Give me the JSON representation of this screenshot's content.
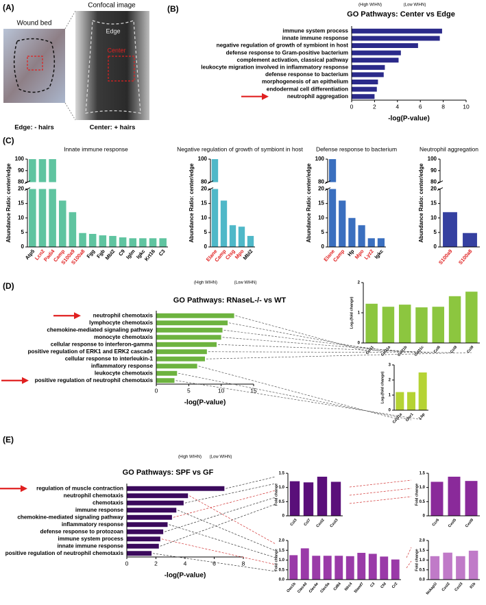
{
  "figure": {
    "panel_labels": [
      "(A)",
      "(B)",
      "(C)",
      "(D)",
      "(E)"
    ],
    "panel_a": {
      "wound_bed": "Wound bed",
      "confocal": "Confocal image",
      "edge": "Edge",
      "center": "Center",
      "edge_caption": "Edge: - hairs",
      "center_caption": "Center: + hairs"
    }
  },
  "chart_data": [
    {
      "type": "bar",
      "orientation": "horizontal",
      "title": "GO Pathways: Center vs Edge",
      "annotations": [
        "(High WIHN)",
        "(Low WIHN)"
      ],
      "color": "#2b2a8a",
      "categories": [
        "immune system process",
        "innate immune response",
        "negative regulation of growth of symbiont in host",
        "defense response to Gram-positive bacterium",
        "complement activation, classical pathway",
        "leukocyte migration involved in inflammatory response",
        "defense response to bacterium",
        "morphogenesis of an epithelium",
        "endodermal cell differentiation",
        "neutrophil aggregation"
      ],
      "values": [
        7.9,
        7.7,
        5.8,
        4.3,
        4.1,
        2.9,
        2.8,
        2.3,
        2.2,
        2.0
      ],
      "xlabel": "-log(P-value)",
      "xlim": [
        0,
        10
      ],
      "xticks": [
        0,
        2,
        4,
        6,
        8,
        10
      ]
    },
    {
      "type": "bar",
      "title": "Innate immune response",
      "ylabel": "Abundance Ratio: center/edge",
      "color": "#5fc4a0",
      "categories": [
        "Atp5",
        "Lcn2",
        "Padi4",
        "Camp",
        "S100a9",
        "S100a8",
        "Fgg",
        "Fgb",
        "Mbl2",
        "C9",
        "Iglm",
        "Igkc",
        "Krt16",
        "C3"
      ],
      "category_colors": [
        "#000000",
        "#e02020",
        "#e02020",
        "#e02020",
        "#e02020",
        "#e02020",
        "#000000",
        "#000000",
        "#000000",
        "#000000",
        "#000000",
        "#000000",
        "#000000",
        "#000000"
      ],
      "values": [
        100,
        100,
        100,
        16,
        12,
        4.8,
        4.5,
        4,
        3.8,
        3.3,
        3,
        3,
        3,
        3
      ],
      "ylim": [
        0,
        100
      ],
      "ybreak": [
        20,
        80
      ],
      "yticks": [
        0,
        5,
        10,
        15,
        20,
        80,
        90,
        100
      ]
    },
    {
      "type": "bar",
      "title": "Negative regulation of growth of symbiont in host",
      "ylabel": "Abundance Ratio: center/edge",
      "color": "#4fb8c8",
      "categories": [
        "Elane",
        "Camp",
        "Ctsg",
        "Mpo",
        "Mbl2"
      ],
      "category_colors": [
        "#e02020",
        "#e02020",
        "#e02020",
        "#e02020",
        "#000000"
      ],
      "values": [
        100,
        16,
        7.5,
        7,
        3.8
      ],
      "ylim": [
        0,
        100
      ],
      "ybreak": [
        20,
        80
      ],
      "yticks": [
        0,
        5,
        10,
        15,
        20,
        80,
        100
      ]
    },
    {
      "type": "bar",
      "title": "Defense response to bacterium",
      "ylabel": "Abundance Ratio: center/edge",
      "color": "#3a6fbf",
      "categories": [
        "Elane",
        "Camp",
        "Hp",
        "Mpo",
        "Lyz2",
        "Igkc"
      ],
      "category_colors": [
        "#e02020",
        "#e02020",
        "#000000",
        "#e02020",
        "#e02020",
        "#000000"
      ],
      "values": [
        100,
        16,
        10,
        7.5,
        3,
        3
      ],
      "ylim": [
        0,
        100
      ],
      "ybreak": [
        20,
        80
      ],
      "yticks": [
        0,
        5,
        10,
        15,
        20,
        80,
        100
      ]
    },
    {
      "type": "bar",
      "title": "Neutrophil aggregation",
      "ylabel": "Abundance Ratio: center/edge",
      "color": "#3540a0",
      "categories": [
        "S100a9",
        "S100a8"
      ],
      "category_colors": [
        "#e02020",
        "#e02020"
      ],
      "values": [
        12,
        4.8
      ],
      "ylim": [
        0,
        100
      ],
      "ybreak": [
        20,
        80
      ],
      "yticks": [
        0,
        5,
        10,
        15,
        20,
        80,
        90,
        100
      ]
    },
    {
      "type": "bar",
      "orientation": "horizontal",
      "title": "GO Pathways: RNaseL-/- vs WT",
      "annotations": [
        "(High WIHN)",
        "(Low WIHN)"
      ],
      "color": "#6db33f",
      "categories": [
        "neutrophil chemotaxis",
        "lymphocyte chemotaxis",
        "chemokine-mediated signaling pathway",
        "monocyte chemotaxis",
        "cellular response to interferon-gamma",
        "positive regulation of ERK1 and ERK2 cascade",
        "cellular response to interleukin-1",
        "inflammatory response",
        "leukocyte chemotaxis",
        "positive regulation of neutrophil chemotaxis"
      ],
      "values": [
        12,
        11,
        10.2,
        10,
        9.3,
        7.8,
        7.5,
        6.3,
        3.2,
        2.8
      ],
      "xlabel": "-log(P-value)",
      "xlim": [
        0,
        15
      ],
      "xticks": [
        0,
        5,
        10,
        15
      ]
    },
    {
      "type": "bar",
      "ylabel": "Log₂(fold change)",
      "color": "#8cc63f",
      "categories": [
        "Ccl11",
        "Ccl21a",
        "Ccl21b",
        "Ccl21c",
        "Ccl6",
        "Ccl8",
        "Ccl9"
      ],
      "values": [
        1.3,
        1.2,
        1.27,
        1.18,
        1.2,
        1.55,
        1.7
      ],
      "ylim": [
        0,
        2
      ],
      "yticks": [
        0,
        1,
        2
      ]
    },
    {
      "type": "bar",
      "ylabel": "Log₂(fold change)",
      "color": "#b5d334",
      "categories": [
        "Ccl21a",
        "Cfsr1",
        "Lbp"
      ],
      "values": [
        1.2,
        1.2,
        2.5
      ],
      "ylim": [
        0,
        3
      ],
      "yticks": [
        0,
        1,
        2,
        3
      ]
    },
    {
      "type": "bar",
      "orientation": "horizontal",
      "title": "GO Pathways: SPF vs GF",
      "annotations": [
        "(High WIHN)",
        "(Low WIHN)"
      ],
      "color": "#3b0a5c",
      "categories": [
        "regulation of muscle contraction",
        "neutrophil chemotaxis",
        "chemotaxis",
        "immune response",
        "chemokine-mediated signaling pathway",
        "inflammatory response",
        "defense response to protozoan",
        "immune system process",
        "innate immune response",
        "positive regulation of neutrophil chemotaxis"
      ],
      "values": [
        6.7,
        4.2,
        3.9,
        3.4,
        3.1,
        2.8,
        2.5,
        2.3,
        2.2,
        1.7
      ],
      "xlabel": "-log(P-value)",
      "xlim": [
        0,
        8
      ],
      "xticks": [
        0,
        2,
        4,
        6,
        8
      ]
    },
    {
      "type": "bar",
      "ylabel": "Fold change",
      "color": "#5a0f7a",
      "categories": [
        "Ccl3",
        "Ccl7",
        "Cxcl2",
        "Cxcl3"
      ],
      "values": [
        1.22,
        1.18,
        1.38,
        1.2
      ],
      "ylim": [
        0,
        1.5
      ],
      "yticks": [
        0,
        0.5,
        {
          "value": 1,
          "label": "1.0"
        },
        1.5
      ]
    },
    {
      "type": "bar",
      "ylabel": "Fold change",
      "color": "#8a2a9a",
      "categories": [
        "Ccr6",
        "Cxcl5",
        "Cxcl9"
      ],
      "values": [
        1.2,
        1.38,
        1.23
      ],
      "ylim": [
        0,
        1.5
      ],
      "yticks": [
        0,
        0.5,
        {
          "value": 1,
          "label": "1.0"
        },
        1.5
      ]
    },
    {
      "type": "bar",
      "ylabel": "Fold change",
      "color": "#9a3aa8",
      "categories": [
        "Oas1b",
        "Clec4d",
        "Clec4e",
        "Clec5a",
        "Cd84",
        "Nlrc4",
        "Slamf7",
        "C3",
        "Cfd",
        "Cr2"
      ],
      "values": [
        1.25,
        1.6,
        1.22,
        1.22,
        1.22,
        1.2,
        1.37,
        1.32,
        1.18,
        1.03
      ],
      "ylim": [
        0,
        2
      ],
      "yticks": [
        {
          "value": 0,
          "label": "0.0"
        },
        0.5,
        {
          "value": 1,
          "label": "1.0"
        },
        1.5,
        {
          "value": 2,
          "label": "2.0"
        }
      ]
    },
    {
      "type": "bar",
      "ylabel": "Fold change",
      "color": "#c07ac8",
      "categories": [
        "Nckap1l",
        "Cxcl2",
        "Cxcl3",
        "Il1b"
      ],
      "values": [
        1.2,
        1.38,
        1.2,
        1.48
      ],
      "ylim": [
        0,
        2
      ],
      "yticks": [
        {
          "value": 0,
          "label": "0.0"
        },
        0.5,
        {
          "value": 1,
          "label": "1.0"
        },
        1.5,
        {
          "value": 2,
          "label": "2.0"
        }
      ]
    }
  ]
}
